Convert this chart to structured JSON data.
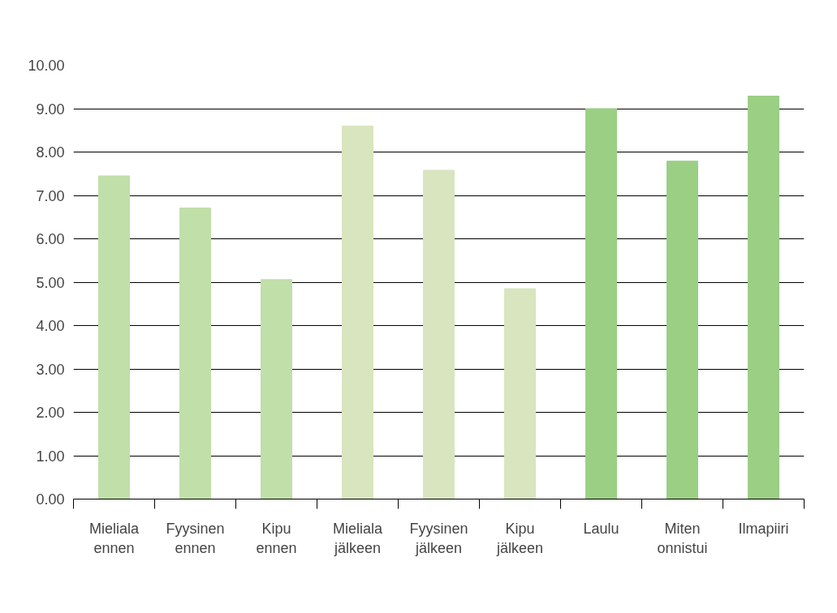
{
  "chart_data": {
    "type": "bar",
    "categories": [
      "Mieliala ennen",
      "Fyysinen ennen",
      "Kipu ennen",
      "Mieliala jälkeen",
      "Fyysinen jälkeen",
      "Kipu jälkeen",
      "Laulu",
      "Miten onnistui",
      "Ilmapiiri"
    ],
    "values": [
      7.45,
      6.71,
      5.06,
      8.6,
      7.58,
      4.85,
      9.0,
      7.79,
      9.29
    ],
    "colors": [
      "#c0dfa9",
      "#c0dfa9",
      "#c0dfa9",
      "#d8e5bf",
      "#d8e5bf",
      "#d8e5bf",
      "#9bcf84",
      "#9bcf84",
      "#9bcf84"
    ],
    "ylim": [
      0,
      10
    ],
    "yticks": [
      {
        "value": 0,
        "label": "0.00"
      },
      {
        "value": 1,
        "label": "1.00"
      },
      {
        "value": 2,
        "label": "2.00"
      },
      {
        "value": 3,
        "label": "3.00"
      },
      {
        "value": 4,
        "label": "4.00"
      },
      {
        "value": 5,
        "label": "5.00"
      },
      {
        "value": 6,
        "label": "6.00"
      },
      {
        "value": 7,
        "label": "7.00"
      },
      {
        "value": 8,
        "label": "8.00"
      },
      {
        "value": 9,
        "label": "9.00"
      },
      {
        "value": 10,
        "label": "10.00"
      }
    ],
    "grid": "y"
  }
}
